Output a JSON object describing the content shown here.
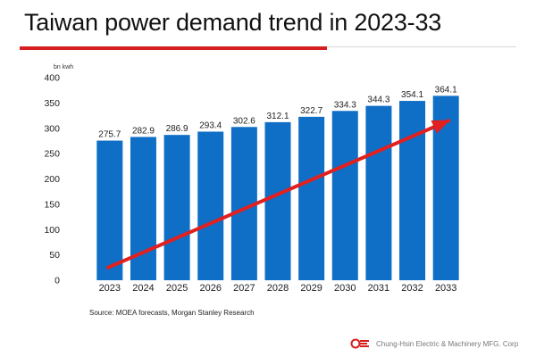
{
  "slide": {
    "title": "Taiwan power demand trend in 2023-33",
    "source": "Source: MOEA forecasts, Morgan Stanley Research",
    "company": "Chung-Hsin Electric & Machinery MFG. Corp"
  },
  "colors": {
    "bar": "#0f6fc6",
    "arrow": "#e12020",
    "accent": "#d61e1e"
  },
  "chart_data": {
    "type": "bar",
    "title": "Taiwan power demand trend in 2023-33",
    "unit_label": "bn kwh",
    "xlabel": "",
    "ylabel": "bn kwh",
    "categories": [
      "2023",
      "2024",
      "2025",
      "2026",
      "2027",
      "2028",
      "2029",
      "2030",
      "2031",
      "2032",
      "2033"
    ],
    "values": [
      275.7,
      282.9,
      286.9,
      293.4,
      302.6,
      312.1,
      322.7,
      334.3,
      344.3,
      354.1,
      364.1
    ],
    "value_labels": [
      "275.7",
      "282.9",
      "286.9",
      "293.4",
      "302.6",
      "312.1",
      "322.7",
      "334.3",
      "344.3",
      "354.1",
      "364.1"
    ],
    "ylim": [
      0,
      400
    ],
    "yticks": [
      0,
      50,
      100,
      150,
      200,
      250,
      300,
      350,
      400
    ],
    "grid": false,
    "legend": "none",
    "annotations": [
      {
        "type": "trend-arrow",
        "from": "2023",
        "to": "2033",
        "color": "#e12020"
      }
    ]
  }
}
